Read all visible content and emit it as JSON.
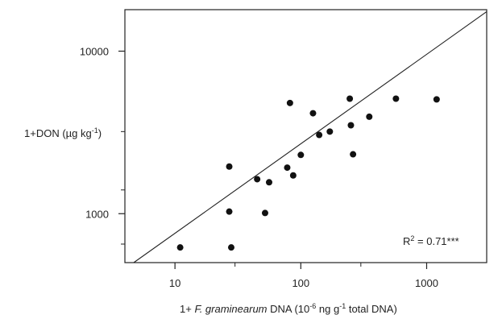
{
  "chart_data": {
    "type": "scatter",
    "x_scale": "log",
    "y_scale": "log",
    "xlim": [
      4,
      3000
    ],
    "ylim": [
      500,
      18000
    ],
    "x_major_ticks": [
      10,
      100,
      1000
    ],
    "x_tick_labels": [
      "10",
      "100",
      "1000"
    ],
    "x_minor_ticks": [
      30,
      300
    ],
    "y_major_ticks": [
      1000,
      10000
    ],
    "y_tick_labels": [
      "1000",
      "10000"
    ],
    "y_minor_ticks": [
      650,
      1400,
      3200
    ],
    "xlabel": {
      "prefix": "1+ ",
      "italic": "F. graminearum",
      "middle": " DNA (10",
      "sup1": "-6",
      "middle2": " ng g",
      "sup2": "-1",
      "suffix": " total DNA)"
    },
    "ylabel": {
      "prefix": "1+DON (µg kg",
      "sup": "-1",
      "suffix": ")"
    },
    "points": [
      {
        "x": 11,
        "y": 620
      },
      {
        "x": 27,
        "y": 1030
      },
      {
        "x": 27,
        "y": 1950
      },
      {
        "x": 28,
        "y": 620
      },
      {
        "x": 45,
        "y": 1630
      },
      {
        "x": 52,
        "y": 1010
      },
      {
        "x": 56,
        "y": 1560
      },
      {
        "x": 78,
        "y": 1920
      },
      {
        "x": 82,
        "y": 4800
      },
      {
        "x": 87,
        "y": 1720
      },
      {
        "x": 100,
        "y": 2300
      },
      {
        "x": 125,
        "y": 4150
      },
      {
        "x": 140,
        "y": 3050
      },
      {
        "x": 170,
        "y": 3200
      },
      {
        "x": 245,
        "y": 5100
      },
      {
        "x": 250,
        "y": 3500
      },
      {
        "x": 260,
        "y": 2320
      },
      {
        "x": 350,
        "y": 3950
      },
      {
        "x": 570,
        "y": 5100
      },
      {
        "x": 1200,
        "y": 5050
      }
    ],
    "fit_line": {
      "x": [
        4.7,
        3000
      ],
      "y": [
        500,
        17500
      ]
    },
    "annotation": {
      "text": "R",
      "sup": "2",
      "suffix": " = 0.71***"
    },
    "grid": false,
    "legend": "none"
  }
}
